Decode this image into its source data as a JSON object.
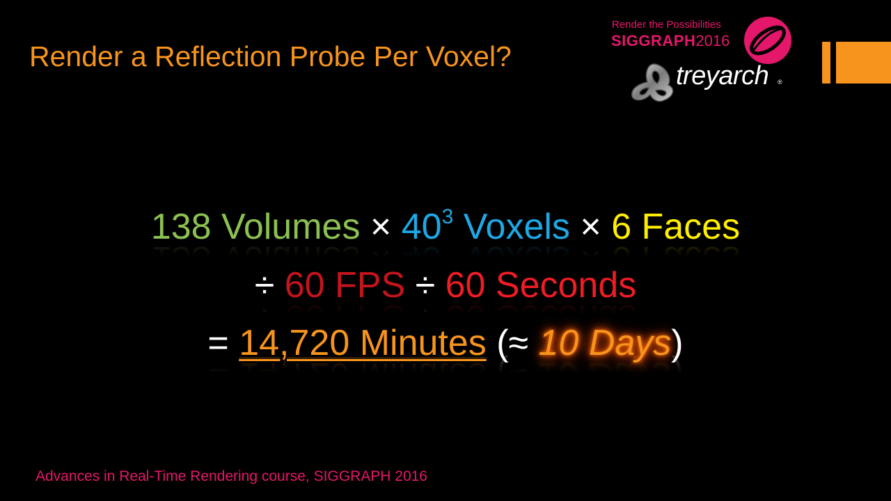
{
  "slide": {
    "title": "Render a Reflection Probe Per Voxel?",
    "footer": "Advances in Real-Time Rendering course, SIGGRAPH 2016"
  },
  "badge": {
    "tagline": "Render the Possibilities",
    "siggraph_name": "SIGGRAPH",
    "siggraph_year": "2016",
    "treyarch": "treyarch",
    "registered": "®"
  },
  "equation": {
    "line1": {
      "volumes": "138 Volumes",
      "times1": " × ",
      "voxels_base": "40",
      "voxels_exp": "3",
      "voxels_word": " Voxels",
      "times2": " × ",
      "faces": "6 Faces"
    },
    "line2": {
      "div1": "÷ ",
      "fps": "60 FPS",
      "div2": " ÷ ",
      "seconds": "60 Seconds"
    },
    "line3": {
      "equals": "= ",
      "minutes": "14,720 Minutes",
      "open": " (≈ ",
      "days": "10 Days",
      "close": ")"
    }
  },
  "colors": {
    "accent_orange": "#f7941d",
    "siggraph_pink": "#e5176b",
    "volumes_green": "#8cc152",
    "voxels_blue": "#1ea8e4",
    "faces_yellow": "#ffee00",
    "fps_darkred": "#c4141c",
    "seconds_red": "#ee1c25"
  },
  "icons": [
    "siggraph-emblem-icon",
    "treyarch-emblem-icon"
  ]
}
